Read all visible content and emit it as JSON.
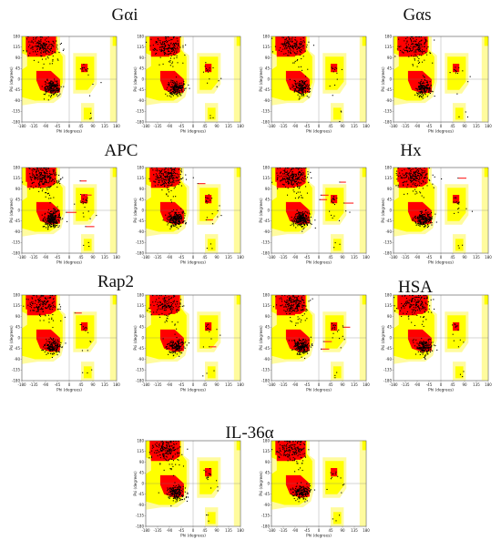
{
  "colors": {
    "most_favoured": "#ff0000",
    "additional_allowed": "#ffff00",
    "generous": "#fffb9e",
    "disallowed": "#ffffff",
    "residue": "#000000",
    "outlier_label": "#ff2020"
  },
  "axes": {
    "xlabel": "Phi (degrees)",
    "ylabel": "Psi (degrees)",
    "x_ticks": [
      "-180",
      "-135",
      "-90",
      "-45",
      "0",
      "45",
      "90",
      "135",
      "180"
    ],
    "y_ticks": [
      "180",
      "135",
      "90",
      "45",
      "0",
      "-45",
      "-90",
      "-135",
      "-180"
    ],
    "xlim": [
      -180,
      180
    ],
    "ylim": [
      -180,
      180
    ]
  },
  "panels": [
    {
      "title": "Gαi",
      "plots": [
        {
          "density": 1.0,
          "outliers": 0
        },
        {
          "density": 1.0,
          "outliers": 0
        }
      ]
    },
    {
      "title": "Gαs",
      "plots": [
        {
          "density": 0.9,
          "outliers": 0
        },
        {
          "density": 0.9,
          "outliers": 0
        }
      ]
    },
    {
      "title": "APC",
      "plots": [
        {
          "density": 1.3,
          "outliers": 5
        },
        {
          "density": 1.2,
          "outliers": 2
        }
      ]
    },
    {
      "title": "Hx",
      "plots": [
        {
          "density": 1.3,
          "outliers": 4
        },
        {
          "density": 1.1,
          "outliers": 1
        }
      ]
    },
    {
      "title": "Rap2",
      "plots": [
        {
          "density": 0.9,
          "outliers": 1
        },
        {
          "density": 0.8,
          "outliers": 1
        }
      ]
    },
    {
      "title": "HSA",
      "plots": [
        {
          "density": 1.1,
          "outliers": 3
        },
        {
          "density": 0.9,
          "outliers": 0
        }
      ]
    },
    {
      "title": "IL-36α",
      "plots": [
        {
          "density": 1.0,
          "outliers": 0
        },
        {
          "density": 0.9,
          "outliers": 0
        }
      ]
    }
  ]
}
